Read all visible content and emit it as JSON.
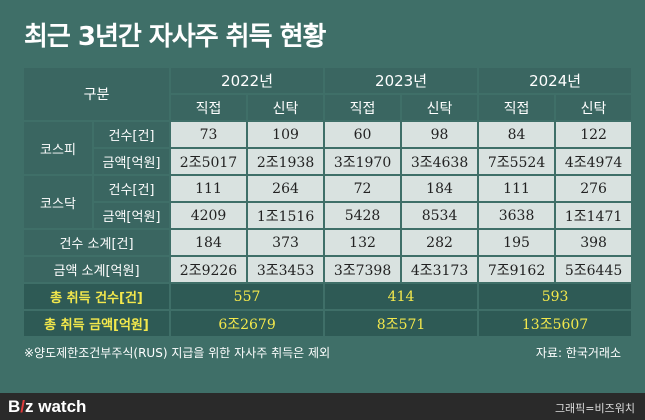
{
  "title": "최근 3년간 자사주 취득 현황",
  "header": {
    "category": "구분",
    "years": [
      "2022년",
      "2023년",
      "2024년"
    ],
    "sub": [
      "직접",
      "신탁",
      "직접",
      "신탁",
      "직접",
      "신탁"
    ]
  },
  "groups": [
    {
      "name": "코스피",
      "rows": [
        {
          "label": "건수[건]",
          "values": [
            "73",
            "109",
            "60",
            "98",
            "84",
            "122"
          ]
        },
        {
          "label": "금액[억원]",
          "values": [
            "2조5017",
            "2조1938",
            "3조1970",
            "3조4638",
            "7조5524",
            "4조4974"
          ]
        }
      ]
    },
    {
      "name": "코스닥",
      "rows": [
        {
          "label": "건수[건]",
          "values": [
            "111",
            "264",
            "72",
            "184",
            "111",
            "276"
          ]
        },
        {
          "label": "금액[억원]",
          "values": [
            "4209",
            "1조1516",
            "5428",
            "8534",
            "3638",
            "1조1471"
          ]
        }
      ]
    }
  ],
  "subtotals": [
    {
      "label": "건수 소계[건]",
      "values": [
        "184",
        "373",
        "132",
        "282",
        "195",
        "398"
      ]
    },
    {
      "label": "금액 소계[억원]",
      "values": [
        "2조9226",
        "3조3453",
        "3조7398",
        "4조3173",
        "7조9162",
        "5조6445"
      ]
    }
  ],
  "totals": [
    {
      "label": "총 취득 건수[건]",
      "values": [
        "557",
        "414",
        "593"
      ]
    },
    {
      "label": "총 취득 금액[억원]",
      "values": [
        "6조2679",
        "8조571",
        "13조5607"
      ]
    }
  ],
  "note": "※양도제한조건부주식(RUS) 지급을 위한 자사주 취득은 제외",
  "source": "자료: 한국거래소",
  "logo": {
    "part1": "B",
    "part2": "/",
    "part3": "z watch"
  },
  "credit": "그래픽=비즈워치",
  "colors": {
    "background": "#3f6f68",
    "cell": "#d9e2e0",
    "highlight": "#f3e84c"
  }
}
